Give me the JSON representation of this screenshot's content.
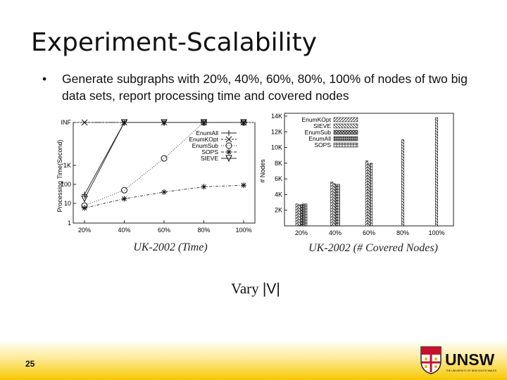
{
  "slide": {
    "title": "Experiment-Scalability",
    "bullet": "Generate subgraphs with 20%, 40%, 60%, 80%, 100% of nodes of two big data sets, report processing time and covered nodes",
    "caption_prefix": "Vary ",
    "caption_var": "|V|",
    "page_number": "25",
    "logo_text": "UNSW",
    "logo_subtext": "THE UNIVERSITY OF NEW SOUTH WALES"
  },
  "colors": {
    "footer": "#f6c800",
    "logo_red": "#c8102e",
    "logo_gold": "#e8b400"
  },
  "chart_data": [
    {
      "type": "line",
      "caption": "UK-2002 (Time)",
      "ylabel": "Processing Time(Second)",
      "yscale": "log",
      "y_ticks": [
        "1",
        "10",
        "100",
        "1K",
        "INF"
      ],
      "categories": [
        "20%",
        "40%",
        "60%",
        "80%",
        "100%"
      ],
      "legend_position": "top-right",
      "series": [
        {
          "name": "EnumAll",
          "marker": "plus",
          "values": [
            30,
            "INF",
            "INF",
            "INF",
            "INF"
          ]
        },
        {
          "name": "EnumKOpt",
          "marker": "x",
          "values": [
            "INF",
            "INF",
            "INF",
            "INF",
            "INF"
          ]
        },
        {
          "name": "EnumSub",
          "marker": "circle",
          "values": [
            8,
            50,
            2200,
            "INF",
            "INF"
          ]
        },
        {
          "name": "SOPS",
          "marker": "star",
          "values": [
            6,
            18,
            40,
            75,
            90
          ]
        },
        {
          "name": "SIEVE",
          "marker": "triangle",
          "values": [
            18,
            "INF",
            "INF",
            "INF",
            "INF"
          ]
        }
      ]
    },
    {
      "type": "bar",
      "caption": "UK-2002 (# Covered Nodes)",
      "ylabel": "# Nodes",
      "ylim": [
        0,
        14000
      ],
      "y_ticks": [
        "2K",
        "4K",
        "6K",
        "8K",
        "10K",
        "12K",
        "14K"
      ],
      "categories": [
        "20%",
        "40%",
        "60%",
        "80%",
        "100%"
      ],
      "legend_position": "top-left",
      "series": [
        {
          "name": "EnumKOpt",
          "values": [
            2800,
            5600,
            8300,
            null,
            null
          ]
        },
        {
          "name": "SIEVE",
          "values": [
            2700,
            5400,
            7900,
            11000,
            13800
          ]
        },
        {
          "name": "EnumSub",
          "values": [
            2700,
            5300,
            null,
            null,
            null
          ]
        },
        {
          "name": "EnumAll",
          "values": [
            2800,
            null,
            null,
            null,
            null
          ]
        },
        {
          "name": "SOPS",
          "values": [
            2800,
            5300,
            8000,
            null,
            null
          ]
        }
      ]
    }
  ]
}
